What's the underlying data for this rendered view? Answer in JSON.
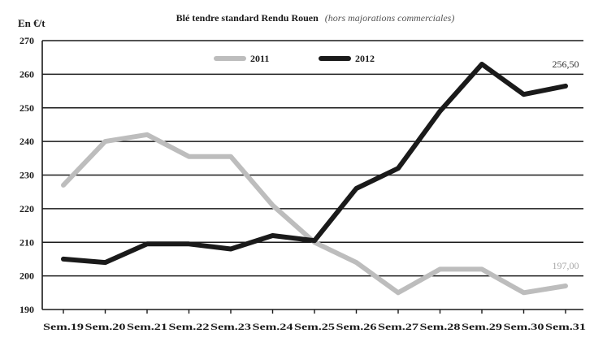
{
  "chart_data": {
    "type": "line",
    "title": "Blé tendre standard Rendu Rouen",
    "subtitle": "(hors majorations commerciales)",
    "ylabel": "En €/t",
    "xlabel": "",
    "categories": [
      "Sem.19",
      "Sem.20",
      "Sem.21",
      "Sem.22",
      "Sem.23",
      "Sem.24",
      "Sem.25",
      "Sem.26",
      "Sem.27",
      "Sem.28",
      "Sem.29",
      "Sem.30",
      "Sem.31"
    ],
    "ylim": [
      190,
      270
    ],
    "yticks": [
      190,
      200,
      210,
      220,
      230,
      240,
      250,
      260,
      270
    ],
    "grid": "horizontal",
    "legend_position": "top",
    "series": [
      {
        "name": "2011",
        "color": "#bdbdbd",
        "values": [
          227,
          240,
          242,
          235.5,
          235.5,
          221,
          210,
          204,
          195,
          202,
          202,
          195,
          197
        ],
        "end_label": "197,00"
      },
      {
        "name": "2012",
        "color": "#1a1a1a",
        "values": [
          205,
          204,
          209.5,
          209.5,
          208,
          212,
          210.5,
          226,
          232,
          249,
          263,
          254,
          256.5
        ],
        "end_label": "256,50"
      }
    ]
  }
}
